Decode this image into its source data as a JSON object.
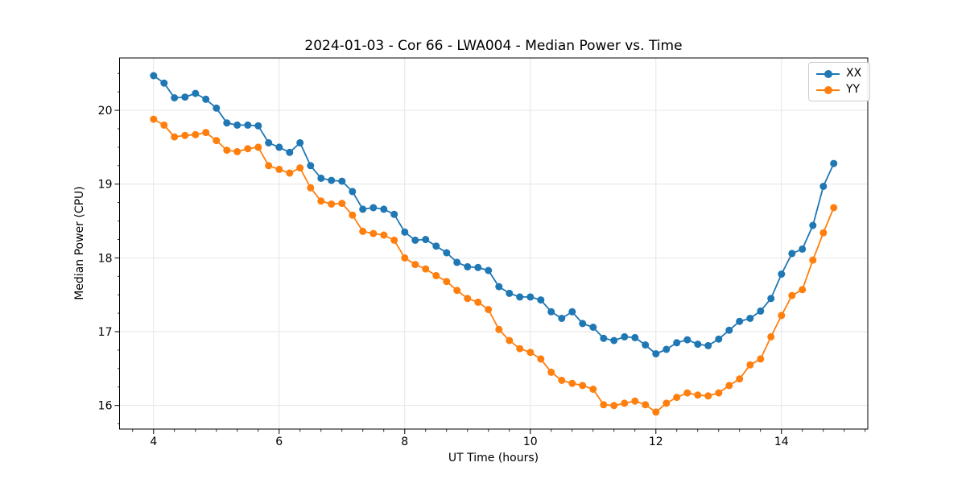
{
  "window": {
    "background": "#ffffff"
  },
  "chart_data": {
    "type": "line",
    "title": "2024-01-03 - Cor 66 - LWA004 - Median Power vs. Time",
    "xlabel": "UT Time (hours)",
    "ylabel": "Median Power (CPU)",
    "xlim": [
      3.458,
      15.375
    ],
    "ylim": [
      15.68,
      20.71
    ],
    "xticks": [
      4,
      6,
      8,
      10,
      12,
      14
    ],
    "yticks": [
      16,
      17,
      18,
      19,
      20
    ],
    "x_minor_step": 0.33333,
    "y_minor_step": 0.25,
    "grid": true,
    "grid_color": "#e6e6e6",
    "legend_position": "upper right",
    "marker": "o",
    "x": [
      4.0,
      4.167,
      4.333,
      4.5,
      4.667,
      4.833,
      5.0,
      5.167,
      5.333,
      5.5,
      5.667,
      5.833,
      6.0,
      6.167,
      6.333,
      6.5,
      6.667,
      6.833,
      7.0,
      7.167,
      7.333,
      7.5,
      7.667,
      7.833,
      8.0,
      8.167,
      8.333,
      8.5,
      8.667,
      8.833,
      9.0,
      9.167,
      9.333,
      9.5,
      9.667,
      9.833,
      10.0,
      10.167,
      10.333,
      10.5,
      10.667,
      10.833,
      11.0,
      11.167,
      11.333,
      11.5,
      11.667,
      11.833,
      12.0,
      12.167,
      12.333,
      12.5,
      12.667,
      12.833,
      13.0,
      13.167,
      13.333,
      13.5,
      13.667,
      13.833,
      14.0,
      14.167,
      14.333,
      14.5,
      14.667,
      14.833
    ],
    "series": [
      {
        "name": "XX",
        "color": "#1f77b4",
        "values": [
          20.47,
          20.37,
          20.17,
          20.18,
          20.23,
          20.15,
          20.03,
          19.83,
          19.8,
          19.8,
          19.79,
          19.56,
          19.5,
          19.43,
          19.56,
          19.25,
          19.08,
          19.05,
          19.04,
          18.9,
          18.66,
          18.68,
          18.66,
          18.59,
          18.35,
          18.24,
          18.25,
          18.16,
          18.07,
          17.94,
          17.88,
          17.87,
          17.83,
          17.61,
          17.52,
          17.47,
          17.47,
          17.43,
          17.27,
          17.18,
          17.27,
          17.11,
          17.06,
          16.91,
          16.88,
          16.93,
          16.92,
          16.82,
          16.7,
          16.76,
          16.85,
          16.89,
          16.83,
          16.81,
          16.9,
          17.02,
          17.14,
          17.18,
          17.28,
          17.45,
          17.78,
          18.06,
          18.12,
          18.44,
          18.97,
          19.28
        ]
      },
      {
        "name": "YY",
        "color": "#ff7f0e",
        "values": [
          19.88,
          19.8,
          19.64,
          19.66,
          19.67,
          19.7,
          19.59,
          19.46,
          19.44,
          19.48,
          19.5,
          19.25,
          19.2,
          19.15,
          19.22,
          18.95,
          18.77,
          18.73,
          18.74,
          18.58,
          18.36,
          18.33,
          18.31,
          18.24,
          18.0,
          17.91,
          17.85,
          17.76,
          17.68,
          17.56,
          17.45,
          17.4,
          17.3,
          17.03,
          16.88,
          16.77,
          16.72,
          16.63,
          16.45,
          16.34,
          16.3,
          16.27,
          16.22,
          16.01,
          16.0,
          16.03,
          16.06,
          16.01,
          15.91,
          16.03,
          16.11,
          16.17,
          16.14,
          16.13,
          16.17,
          16.27,
          16.36,
          16.55,
          16.63,
          16.93,
          17.22,
          17.49,
          17.57,
          17.97,
          18.34,
          18.68
        ]
      }
    ]
  }
}
